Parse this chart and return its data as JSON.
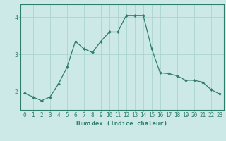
{
  "x": [
    0,
    1,
    2,
    3,
    4,
    5,
    6,
    7,
    8,
    9,
    10,
    11,
    12,
    13,
    14,
    15,
    16,
    17,
    18,
    19,
    20,
    21,
    22,
    23
  ],
  "y": [
    1.95,
    1.85,
    1.75,
    1.85,
    2.2,
    2.65,
    3.35,
    3.15,
    3.05,
    3.35,
    3.6,
    3.6,
    4.05,
    4.05,
    4.05,
    3.15,
    2.5,
    2.48,
    2.42,
    2.3,
    2.3,
    2.25,
    2.05,
    1.93
  ],
  "line_color": "#2e7d6e",
  "marker": "D",
  "marker_size": 2.0,
  "background_color": "#cce9e7",
  "grid_color": "#aad4d0",
  "xlabel": "Humidex (Indice chaleur)",
  "xlim": [
    -0.5,
    23.5
  ],
  "ylim": [
    1.5,
    4.35
  ],
  "yticks": [
    2,
    3,
    4
  ],
  "xticks": [
    0,
    1,
    2,
    3,
    4,
    5,
    6,
    7,
    8,
    9,
    10,
    11,
    12,
    13,
    14,
    15,
    16,
    17,
    18,
    19,
    20,
    21,
    22,
    23
  ],
  "xtick_labels": [
    "0",
    "1",
    "2",
    "3",
    "4",
    "5",
    "6",
    "7",
    "8",
    "9",
    "10",
    "11",
    "12",
    "13",
    "14",
    "15",
    "16",
    "17",
    "18",
    "19",
    "20",
    "21",
    "22",
    "23"
  ],
  "tick_color": "#2e7d6e",
  "tick_fontsize": 5.5,
  "xlabel_fontsize": 6.5,
  "spine_color": "#2e7d6e"
}
